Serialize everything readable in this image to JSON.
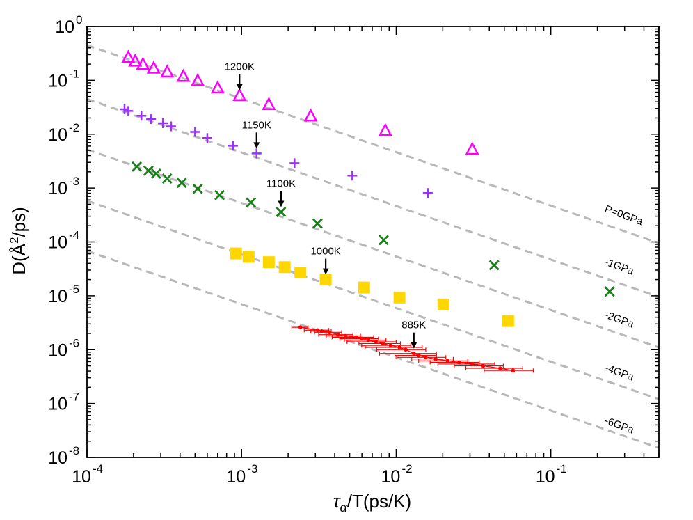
{
  "chart_data": {
    "type": "scatter",
    "scale": {
      "x": "log",
      "y": "log"
    },
    "xlim": [
      0.0001,
      0.5
    ],
    "ylim": [
      1e-08,
      1
    ],
    "xlabel": {
      "main": "τ",
      "sub": "α",
      "rest": "/T(ps/K)"
    },
    "ylabel": {
      "pre": "D(Å",
      "sup": "2",
      "post": "/ps)"
    },
    "x_ticks": [
      {
        "base": "10",
        "exp": "-4",
        "value": 0.0001
      },
      {
        "base": "10",
        "exp": "-3",
        "value": 0.001
      },
      {
        "base": "10",
        "exp": "-2",
        "value": 0.01
      },
      {
        "base": "10",
        "exp": "-1",
        "value": 0.1
      }
    ],
    "y_ticks": [
      {
        "base": "10",
        "exp": "0",
        "value": 1
      },
      {
        "base": "10",
        "exp": "-1",
        "value": 0.1
      },
      {
        "base": "10",
        "exp": "-2",
        "value": 0.01
      },
      {
        "base": "10",
        "exp": "-3",
        "value": 0.001
      },
      {
        "base": "10",
        "exp": "-4",
        "value": 0.0001
      },
      {
        "base": "10",
        "exp": "-5",
        "value": 1e-05
      },
      {
        "base": "10",
        "exp": "-6",
        "value": 1e-06
      },
      {
        "base": "10",
        "exp": "-7",
        "value": 1e-07
      },
      {
        "base": "10",
        "exp": "-8",
        "value": 1e-08
      }
    ],
    "series": [
      {
        "name": "P=0GPa",
        "marker": "triangle",
        "color": "#ff00ff",
        "x": [
          0.000185,
          0.000205,
          0.00023,
          0.00027,
          0.00033,
          0.00042,
          0.00052,
          0.0007,
          0.00097,
          0.0015,
          0.0028,
          0.0085,
          0.031
        ],
        "y": [
          0.27,
          0.23,
          0.2,
          0.17,
          0.145,
          0.12,
          0.1,
          0.073,
          0.053,
          0.036,
          0.022,
          0.0118,
          0.0053
        ]
      },
      {
        "name": "-1GPa",
        "marker": "plus",
        "color": "#9b30ff",
        "x": [
          0.000175,
          0.000185,
          0.000225,
          0.00026,
          0.00031,
          0.00035,
          0.0005,
          0.0006,
          0.00088,
          0.00125,
          0.0022,
          0.0052,
          0.016
        ],
        "y": [
          0.029,
          0.027,
          0.022,
          0.019,
          0.016,
          0.014,
          0.011,
          0.0085,
          0.0061,
          0.0044,
          0.0029,
          0.0017,
          0.00081
        ]
      },
      {
        "name": "-2GPa",
        "marker": "x",
        "color": "#1a7f1a",
        "x": [
          0.00021,
          0.00025,
          0.00028,
          0.00033,
          0.00041,
          0.00052,
          0.00072,
          0.00115,
          0.0018,
          0.0031,
          0.0083,
          0.043,
          0.24
        ],
        "y": [
          0.0025,
          0.0021,
          0.00185,
          0.0015,
          0.00125,
          0.00097,
          0.00074,
          0.00054,
          0.00036,
          0.00022,
          0.000108,
          3.7e-05,
          1.2e-05
        ]
      },
      {
        "name": "-4GPa",
        "marker": "square",
        "color": "#ffd700",
        "x": [
          0.00092,
          0.00111,
          0.0015,
          0.0019,
          0.0024,
          0.0035,
          0.0062,
          0.0105,
          0.0202,
          0.053
        ],
        "y": 6.1e-05,
        "y_values": [
          6.1e-05,
          5.3e-05,
          4.2e-05,
          3.4e-05,
          2.7e-05,
          2e-05,
          1.42e-05,
          9.3e-06,
          6.9e-06,
          3.4e-06
        ]
      },
      {
        "name": "-6GPa",
        "marker": "dot-errorbar",
        "color": "#ff0000",
        "x": [
          0.0024,
          0.0031,
          0.0033,
          0.0037,
          0.0042,
          0.0047,
          0.0055,
          0.006,
          0.0066,
          0.0074,
          0.0082,
          0.0092,
          0.0105,
          0.0115,
          0.013,
          0.014,
          0.0155,
          0.018,
          0.0215,
          0.0255,
          0.031,
          0.0365,
          0.047,
          0.057
        ],
        "y": [
          2.6e-06,
          2.3e-06,
          2.2e-06,
          2.1e-06,
          1.9e-06,
          1.8e-06,
          1.7e-06,
          1.6e-06,
          1.5e-06,
          1.4e-06,
          1.3e-06,
          1.2e-06,
          1.1e-06,
          1e-06,
          8.5e-07,
          7.8e-07,
          7.2e-07,
          6.7e-07,
          6.2e-07,
          5.8e-07,
          5.4e-07,
          5e-07,
          4.5e-07,
          4.1e-07
        ],
        "xerr_frac": [
          0.12,
          0.18,
          0.15,
          0.2,
          0.25,
          0.25,
          0.3,
          0.28,
          0.3,
          0.35,
          0.3,
          0.35,
          0.4,
          0.35,
          0.4,
          0.3,
          0.35,
          0.3,
          0.35,
          0.35,
          0.4,
          0.35,
          0.4,
          0.35
        ]
      }
    ],
    "reference_lines": [
      {
        "label": "P=0GPa",
        "x": [
          0.0001,
          0.5
        ],
        "y": [
          0.45,
          9.5e-05
        ]
      },
      {
        "label": "-1GPa",
        "x": [
          0.0001,
          0.5
        ],
        "y": [
          0.045,
          9.5e-06
        ]
      },
      {
        "label": "-2GPa",
        "x": [
          0.0001,
          0.5
        ],
        "y": [
          0.0052,
          1.1e-06
        ]
      },
      {
        "label": "-4GPa",
        "x": [
          0.0001,
          0.5
        ],
        "y": [
          0.00058,
          1.2e-07
        ]
      },
      {
        "label": "-6GPa",
        "x": [
          0.0001,
          0.5
        ],
        "y": [
          6.8e-05,
          1.5e-08
        ]
      }
    ],
    "annotations": [
      {
        "text": "1200K",
        "x": 0.00097,
        "y": 0.053
      },
      {
        "text": "1150K",
        "x": 0.00125,
        "y": 0.0044
      },
      {
        "text": "1100K",
        "x": 0.0018,
        "y": 0.00036
      },
      {
        "text": "1000K",
        "x": 0.0035,
        "y": 2e-05
      },
      {
        "text": "885K",
        "x": 0.013,
        "y": 8.5e-07
      }
    ]
  }
}
